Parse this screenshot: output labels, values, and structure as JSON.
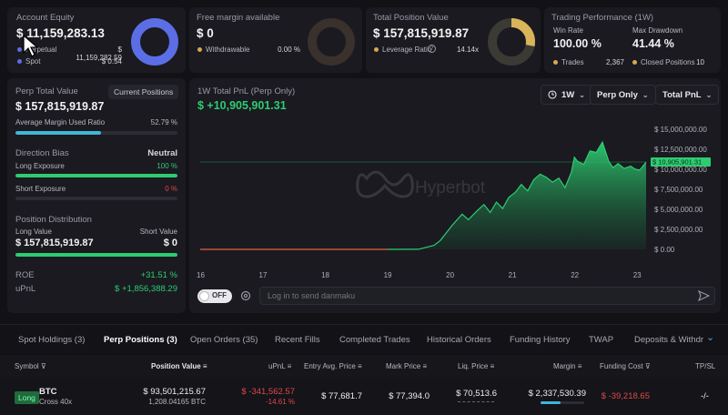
{
  "account": {
    "title": "Account Equity",
    "value": "$ 11,159,283.13",
    "perpetual_label": "Perpetual",
    "perpetual_value": "$ 11,159,282.59",
    "spot_label": "Spot",
    "spot_value": "$ 0.54",
    "colors": {
      "perpetual": "#5b6ee6",
      "spot": "#5b6ee6"
    }
  },
  "margin": {
    "title": "Free margin available",
    "value": "$ 0",
    "withdrawable_label": "Withdrawable",
    "withdrawable_value": "0.00 %"
  },
  "position_value": {
    "title": "Total Position Value",
    "value": "$ 157,815,919.87",
    "leverage_label": "Leverage Ratio",
    "leverage_value": "14.14x"
  },
  "performance": {
    "title": "Trading Performance (1W)",
    "win_rate_label": "Win Rate",
    "win_rate_value": "100.00 %",
    "max_drawdown_label": "Max Drawdown",
    "max_drawdown_value": "41.44 %",
    "trades_label": "Trades",
    "trades_value": "2,367",
    "closed_label": "Closed Positions",
    "closed_value": "10"
  },
  "perp": {
    "title": "Perp Total Value",
    "badge": "Current Positions",
    "value": "$ 157,815,919.87",
    "margin_ratio_label": "Average Margin Used Ratio",
    "margin_ratio_value": "52.79 %",
    "margin_ratio": 52.79,
    "direction_label": "Direction Bias",
    "direction_value": "Neutral",
    "long_exposure_label": "Long Exposure",
    "long_exposure_value": "100 %",
    "long_exposure": 100,
    "short_exposure_label": "Short Exposure",
    "short_exposure_value": "0 %",
    "short_exposure": 0,
    "distribution_title": "Position Distribution",
    "long_value_label": "Long Value",
    "short_value_label": "Short Value",
    "long_value": "$ 157,815,919.87",
    "short_value": "$ 0",
    "long_share": 100,
    "roe_label": "ROE",
    "roe_value": "+31.51 %",
    "upnl_label": "uPnL",
    "upnl_value": "$ +1,856,388.29"
  },
  "chart_header": {
    "title": "1W Total PnL (Perp Only)",
    "value": "$ +10,905,901.31",
    "range": "1W",
    "scope": "Perp Only",
    "metric": "Total PnL",
    "watermark": "Hyperbot",
    "current_label": "$ 10,905,901.31"
  },
  "chart_data": {
    "type": "area",
    "x_ticks": [
      "16",
      "17",
      "18",
      "19",
      "20",
      "21",
      "22",
      "23"
    ],
    "y_ticks": [
      "$ 15,000,000.00",
      "$ 12,500,000.00",
      "$ 10,000,000.00",
      "$ 7,500,000.00",
      "$ 5,000,000.00",
      "$ 2,500,000.00",
      "$ 0.00"
    ],
    "ylim": [
      0,
      15000000
    ],
    "xlim": [
      16,
      23.15
    ],
    "points": [
      [
        16.0,
        0
      ],
      [
        16.5,
        0
      ],
      [
        17.0,
        0
      ],
      [
        17.5,
        0
      ],
      [
        18.0,
        0
      ],
      [
        18.5,
        0
      ],
      [
        19.0,
        0
      ],
      [
        19.5,
        10000
      ],
      [
        19.6,
        200000
      ],
      [
        19.75,
        500000
      ],
      [
        19.85,
        1100000
      ],
      [
        19.95,
        2100000
      ],
      [
        20.05,
        3100000
      ],
      [
        20.2,
        4400000
      ],
      [
        20.3,
        3700000
      ],
      [
        20.45,
        4900000
      ],
      [
        20.55,
        5600000
      ],
      [
        20.65,
        4600000
      ],
      [
        20.75,
        5900000
      ],
      [
        20.85,
        5100000
      ],
      [
        20.95,
        6500000
      ],
      [
        21.05,
        7100000
      ],
      [
        21.15,
        8100000
      ],
      [
        21.25,
        7300000
      ],
      [
        21.35,
        8700000
      ],
      [
        21.45,
        9400000
      ],
      [
        21.55,
        9000000
      ],
      [
        21.65,
        8400000
      ],
      [
        21.75,
        8900000
      ],
      [
        21.85,
        7700000
      ],
      [
        21.95,
        9600000
      ],
      [
        22.0,
        11500000
      ],
      [
        22.05,
        11000000
      ],
      [
        22.15,
        10600000
      ],
      [
        22.25,
        12300000
      ],
      [
        22.35,
        12100000
      ],
      [
        22.45,
        13400000
      ],
      [
        22.55,
        11000000
      ],
      [
        22.62,
        10200000
      ],
      [
        22.7,
        10700000
      ],
      [
        22.8,
        10100000
      ],
      [
        22.9,
        10400000
      ],
      [
        22.98,
        10000000
      ],
      [
        23.05,
        9900000
      ],
      [
        23.15,
        10900000
      ]
    ],
    "ref_value": 10905901.31,
    "line_color_before": "#e0663a",
    "line_color": "#2ecc71"
  },
  "danmaku": {
    "toggle": "OFF",
    "placeholder": "Log in to send danmaku"
  },
  "tabs": [
    "Spot Holdings (3)",
    "Perp Positions (3)",
    "Open Orders (35)",
    "Recent Fills",
    "Completed Trades",
    "Historical Orders",
    "Funding History",
    "TWAP",
    "Deposits & Withdra"
  ],
  "table": {
    "headers": [
      "Symbol",
      "Position Value",
      "uPnL",
      "Entry Avg. Price",
      "Mark Price",
      "Liq. Price",
      "Margin",
      "Funding Cost",
      "TP/SL"
    ],
    "row": {
      "side": "Long",
      "symbol": "BTC",
      "leverage": "Cross 40x",
      "position_value": "$ 93,501,215.67",
      "position_size": "1,208.04165 BTC",
      "upnl": "$ -341,562.57",
      "upnl_pct": "-14.61 %",
      "entry": "$ 77,681.7",
      "mark": "$ 77,394.0",
      "liq": "$ 70,513.6",
      "margin": "$ 2,337,530.39",
      "funding": "$ -39,218.65",
      "tpsl": "-/-"
    }
  }
}
